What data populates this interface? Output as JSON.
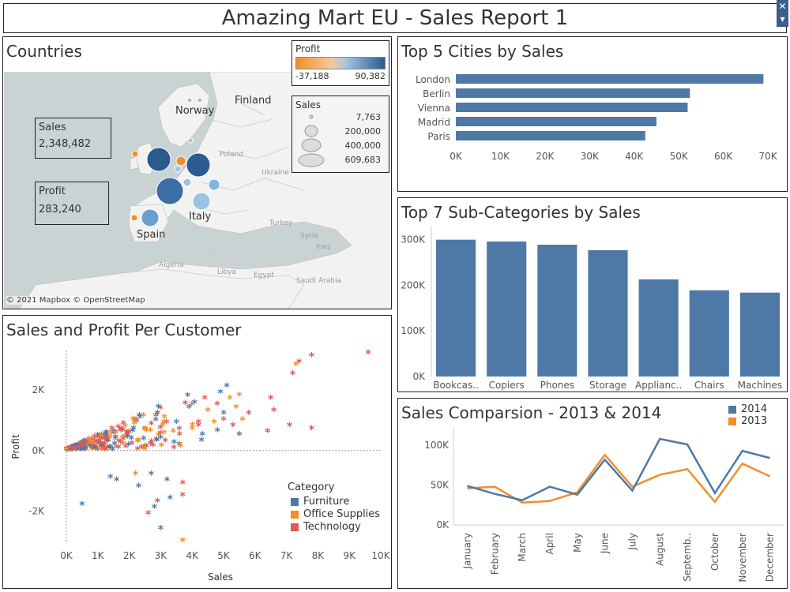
{
  "header": {
    "title": "Amazing Mart EU - Sales Report 1"
  },
  "window_controls": {
    "close_glyph": "✕",
    "menu_glyph": "▾"
  },
  "colors": {
    "bar": "#4e79a7",
    "series_2014": "#4e79a7",
    "series_2013": "#f28e2b",
    "furniture": "#4e79a7",
    "office_supplies": "#f28e2b",
    "technology": "#e15759",
    "map_land": "#f2f2f0",
    "map_sea": "#c9d3d4",
    "profit_low": "#f28e2b",
    "profit_high": "#2a5a8e"
  },
  "countries_panel": {
    "title": "Countries",
    "sales_label": "Sales",
    "sales_value": "2,348,482",
    "profit_label": "Profit",
    "profit_value": "283,240",
    "profit_legend": {
      "title": "Profit",
      "min": "-37,188",
      "max": "90,382"
    },
    "sales_legend": {
      "title": "Sales",
      "entries": [
        "7,763",
        "200,000",
        "400,000",
        "609,683"
      ]
    },
    "map_labels": [
      "Finland",
      "Norway",
      "Italy",
      "Spain"
    ],
    "minor_labels": [
      "Poland",
      "Ukraine",
      "Turkey",
      "Algeria",
      "Libya",
      "Egypt",
      "Saudi Arabia",
      "Iraq",
      "Syria"
    ],
    "attribution": "© 2021 Mapbox © OpenStreetMap"
  },
  "cities_panel": {
    "title": "Top 5 Cities by Sales"
  },
  "subcat_panel": {
    "title": "Top 7 Sub-Categories by Sales"
  },
  "scatter_panel": {
    "title": "Sales and Profit Per Customer",
    "legend_title": "Category",
    "legend": [
      "Furniture",
      "Office Supplies",
      "Technology"
    ]
  },
  "comparison_panel": {
    "title": "Sales Comparsion - 2013 & 2014",
    "legend": [
      "2014",
      "2013"
    ]
  },
  "chart_data": [
    {
      "type": "bar",
      "title": "Top 5 Cities by Sales",
      "orientation": "horizontal",
      "categories": [
        "London",
        "Berlin",
        "Vienna",
        "Madrid",
        "Paris"
      ],
      "values": [
        69000,
        52500,
        52000,
        45000,
        42500
      ],
      "xticks": [
        "0K",
        "10K",
        "20K",
        "30K",
        "40K",
        "50K",
        "60K",
        "70K"
      ],
      "xlim": [
        0,
        70000
      ]
    },
    {
      "type": "bar",
      "title": "Top 7 Sub-Categories by Sales",
      "categories": [
        "Bookcas..",
        "Copiers",
        "Phones",
        "Storage",
        "Applianc..",
        "Chairs",
        "Machines"
      ],
      "values": [
        300000,
        296000,
        289000,
        277000,
        213000,
        189000,
        184000
      ],
      "yticks": [
        "0K",
        "100K",
        "200K",
        "300K"
      ],
      "ylim": [
        0,
        315000
      ]
    },
    {
      "type": "scatter",
      "title": "Sales and Profit Per Customer",
      "xlabel": "Sales",
      "ylabel": "Profit",
      "xticks": [
        "0K",
        "1K",
        "2K",
        "3K",
        "4K",
        "5K",
        "6K",
        "7K",
        "8K",
        "9K",
        "10K"
      ],
      "yticks": [
        "-2K",
        "0K",
        "2K"
      ],
      "xlim": [
        0,
        10000
      ],
      "ylim": [
        -3000,
        3300
      ],
      "series": [
        {
          "name": "Technology",
          "points": [
            [
              9600,
              3200
            ],
            [
              7800,
              3100
            ],
            [
              7400,
              2900
            ],
            [
              7200,
              2500
            ],
            [
              7800,
              700
            ],
            [
              7100,
              800
            ],
            [
              6600,
              1300
            ],
            [
              6500,
              1700
            ],
            [
              5300,
              800
            ],
            [
              5000,
              1000
            ],
            [
              4800,
              1500
            ],
            [
              4400,
              1700
            ],
            [
              3700,
              -1500
            ],
            [
              3700,
              -1100
            ],
            [
              2900,
              -1700
            ],
            [
              2600,
              -2100
            ],
            [
              6400,
              600
            ],
            [
              5800,
              1200
            ],
            [
              4200,
              900
            ],
            [
              3600,
              500
            ]
          ]
        },
        {
          "name": "Office Supplies",
          "points": [
            [
              7300,
              2800
            ],
            [
              5500,
              1800
            ],
            [
              5400,
              1400
            ],
            [
              5600,
              1000
            ],
            [
              5200,
              1700
            ],
            [
              4500,
              1300
            ],
            [
              3700,
              -3000
            ],
            [
              3400,
              600
            ],
            [
              3100,
              900
            ],
            [
              2500,
              700
            ],
            [
              2200,
              -800
            ],
            [
              1800,
              400
            ],
            [
              4000,
              700
            ],
            [
              4700,
              900
            ]
          ]
        },
        {
          "name": "Furniture",
          "points": [
            [
              5100,
              2100
            ],
            [
              4900,
              1900
            ],
            [
              5000,
              1200
            ],
            [
              5500,
              500
            ],
            [
              3500,
              900
            ],
            [
              3000,
              400
            ],
            [
              3000,
              -2600
            ],
            [
              2800,
              -1900
            ],
            [
              3300,
              -1600
            ],
            [
              2300,
              -1200
            ],
            [
              1600,
              -1000
            ],
            [
              500,
              -1800
            ],
            [
              3200,
              -1000
            ],
            [
              2700,
              -800
            ],
            [
              4300,
              300
            ],
            [
              3900,
              1400
            ],
            [
              1400,
              -900
            ],
            [
              2900,
              1200
            ]
          ]
        }
      ]
    },
    {
      "type": "line",
      "title": "Sales Comparsion - 2013 & 2014",
      "categories": [
        "January",
        "February",
        "March",
        "April",
        "May",
        "June",
        "July",
        "August",
        "Septemb..",
        "October",
        "November",
        "December"
      ],
      "yticks": [
        "0K",
        "50K",
        "100K"
      ],
      "ylim": [
        0,
        115000
      ],
      "series": [
        {
          "name": "2014",
          "values": [
            49000,
            39000,
            31000,
            48000,
            38000,
            82000,
            43000,
            108000,
            101000,
            40000,
            93000,
            84000
          ]
        },
        {
          "name": "2013",
          "values": [
            46000,
            48000,
            28000,
            30000,
            41000,
            88000,
            48000,
            63000,
            70000,
            29000,
            77000,
            61000
          ]
        }
      ]
    }
  ]
}
